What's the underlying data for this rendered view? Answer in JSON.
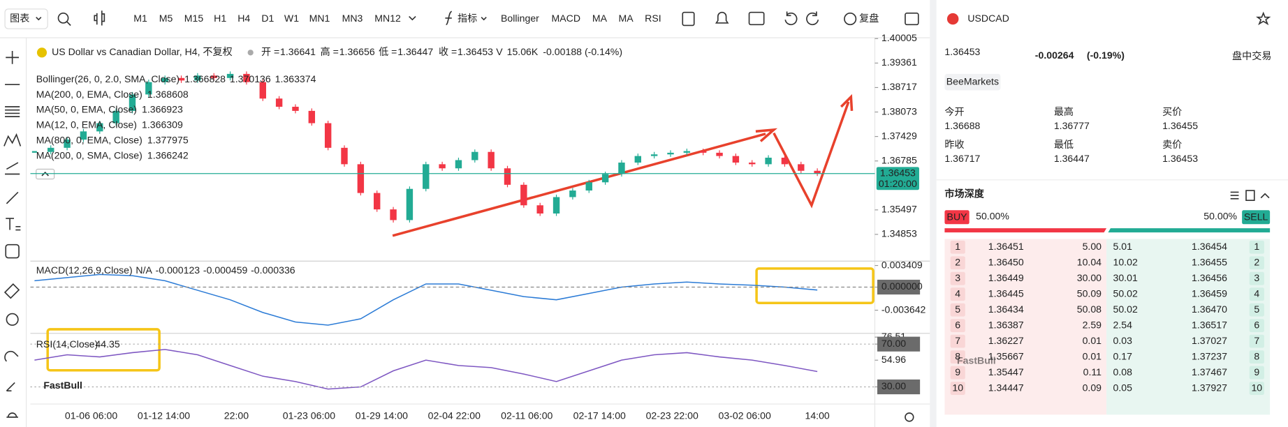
{
  "toolbar": {
    "chart_menu": "图表",
    "timeframes": [
      "M1",
      "M5",
      "M15",
      "H1",
      "H4",
      "D1",
      "W1",
      "MN1",
      "MN3",
      "MN12"
    ],
    "active_timeframe": "H4",
    "indicators_label": "指标",
    "indicators": [
      "Bollinger",
      "MACD",
      "MA",
      "MA",
      "RSI"
    ],
    "replay": "复盘"
  },
  "chart_data": [
    {
      "type": "candlestick",
      "title": "US Dollar vs Canadian Dollar, H4, 不复权",
      "ohlc": [
        {
          "label": "开 =",
          "value": 1.36641
        },
        {
          "label": "高 =",
          "value": 1.36656
        },
        {
          "label": "低 =",
          "value": 1.36447
        },
        {
          "label": "收 =",
          "value": 1.36453
        }
      ],
      "volume_label": "V",
      "volume": "15.06K",
      "change": "-0.00188 (-0.14%)",
      "indicator_legend": [
        {
          "name": "Bollinger(26, 0, 2.0, SMA, Close)",
          "values": [
            "1.366828",
            "1.370136",
            "1.363374"
          ],
          "color": "#2b7bd6"
        },
        {
          "name": "MA(200, 0, EMA, Close)",
          "values": [
            "1.368608"
          ],
          "color": "#111111"
        },
        {
          "name": "MA(50, 0, EMA, Close)",
          "values": [
            "1.366923"
          ],
          "color": "#e6c200"
        },
        {
          "name": "MA(12, 0, EMA, Close)",
          "values": [
            "1.366309"
          ],
          "color": "#e53935"
        },
        {
          "name": "MA(800, 0, EMA, Close)",
          "values": [
            "1.377975"
          ],
          "color": "#f08a24"
        },
        {
          "name": "MA(200, 0, SMA, Close)",
          "values": [
            "1.366242"
          ],
          "color": "#e0457b"
        }
      ],
      "close": [
        1.37023,
        1.37131,
        1.37347,
        1.37563,
        1.37779,
        1.38103,
        1.38535,
        1.3886,
        1.38968,
        1.38903,
        1.39032,
        1.38968,
        1.39076,
        1.3886,
        1.38427,
        1.38211,
        1.38103,
        1.37779,
        1.37131,
        1.36699,
        1.35942,
        1.3551,
        1.35229,
        1.3605,
        1.36699,
        1.36591,
        1.36807,
        1.37023,
        1.36591,
        1.36158,
        1.35618,
        1.35402,
        1.35834,
        1.36007,
        1.36223,
        1.36439,
        1.36742,
        1.36915,
        1.36958,
        1.37001,
        1.37044,
        1.37001,
        1.36915,
        1.36742,
        1.36699,
        1.36871,
        1.36699,
        1.36526,
        1.36453
      ],
      "up_color": "#22ab94",
      "down_color": "#f23645",
      "ylim": [
        1.34192,
        1.40005
      ],
      "yticks": [
        1.40005,
        1.39361,
        1.38717,
        1.38073,
        1.37429,
        1.36785,
        1.35497,
        1.34853
      ],
      "last_price": 1.36453,
      "countdown": "01:20:00",
      "x_labels": [
        "01-06 06:00",
        "01-12 14:00",
        "22:00",
        "01-23 06:00",
        "01-29 14:00",
        "02-04 22:00",
        "02-11 06:00",
        "02-17 14:00",
        "02-23 22:00",
        "03-02 06:00",
        "14:00"
      ]
    },
    {
      "type": "line",
      "title": "MACD(12,26,9,Close)",
      "legend_values": [
        {
          "text": "N/A",
          "color": "#22ab94"
        },
        {
          "text": "-0.000123",
          "color": "#e53935"
        },
        {
          "text": "-0.000459",
          "color": "#2b7bd6"
        },
        {
          "text": "-0.000336",
          "color": "#f08a24"
        }
      ],
      "color": "#2b7bd6",
      "values": [
        0.001,
        0.0015,
        0.002,
        0.0018,
        0.001,
        -0.0005,
        -0.002,
        -0.004,
        -0.0055,
        -0.006,
        -0.005,
        -0.002,
        0.0005,
        0.0005,
        -0.0005,
        -0.0015,
        -0.002,
        -0.001,
        0,
        0.0005,
        0.0008,
        0.0005,
        0.0003,
        0,
        -0.000459
      ],
      "ylim": [
        -0.0073,
        0.0041
      ],
      "yticks": [
        0.003409,
        {
          "value": 0,
          "label": "0.000000"
        },
        -0.003642
      ]
    },
    {
      "type": "line",
      "title": "RSI(14,Close)",
      "last_value": 44.35,
      "color": "#7e57c2",
      "values": [
        55,
        60,
        58,
        62,
        65,
        60,
        50,
        40,
        35,
        28,
        30,
        45,
        55,
        50,
        48,
        42,
        35,
        45,
        55,
        60,
        62,
        58,
        55,
        50,
        44.35
      ],
      "ylim": [
        14,
        80
      ],
      "yticks": [
        76.51,
        {
          "value": 70,
          "label": "70.00"
        },
        54.96,
        {
          "value": 30,
          "label": "30.00"
        }
      ],
      "levels": [
        70,
        30
      ]
    }
  ],
  "watermark": "FastBull",
  "side_panel": {
    "symbol": "USDCAD",
    "price": 1.36453,
    "change": -0.00264,
    "change_pct": "(-0.19%)",
    "session": "盘中交易",
    "broker": "BeeMarkets",
    "stats": [
      {
        "label": "今开",
        "value": 1.36688
      },
      {
        "label": "最高",
        "value": 1.36777
      },
      {
        "label": "买价",
        "value": 1.36455
      },
      {
        "label": "昨收",
        "value": 1.36717
      },
      {
        "label": "最低",
        "value": 1.36447
      },
      {
        "label": "卖价",
        "value": 1.36453
      }
    ],
    "depth_title": "市场深度",
    "buy_label": "BUY",
    "buy_pct": "50.00%",
    "sell_pct": "50.00%",
    "sell_label": "SELL",
    "depth_rows": [
      [
        "1",
        "1.36451",
        "5.00",
        "5.01",
        "1.36454",
        "1"
      ],
      [
        "2",
        "1.36450",
        "10.04",
        "10.02",
        "1.36455",
        "2"
      ],
      [
        "3",
        "1.36449",
        "30.00",
        "30.01",
        "1.36456",
        "3"
      ],
      [
        "4",
        "1.36445",
        "50.09",
        "50.02",
        "1.36459",
        "4"
      ],
      [
        "5",
        "1.36434",
        "50.08",
        "50.02",
        "1.36470",
        "5"
      ],
      [
        "6",
        "1.36387",
        "2.59",
        "2.54",
        "1.36517",
        "6"
      ],
      [
        "7",
        "1.36227",
        "0.01",
        "0.03",
        "1.37027",
        "7"
      ],
      [
        "8",
        "1.35667",
        "0.01",
        "0.17",
        "1.37237",
        "8"
      ],
      [
        "9",
        "1.35447",
        "0.11",
        "0.08",
        "1.37467",
        "9"
      ],
      [
        "10",
        "1.34447",
        "0.09",
        "0.05",
        "1.37927",
        "10"
      ]
    ]
  }
}
